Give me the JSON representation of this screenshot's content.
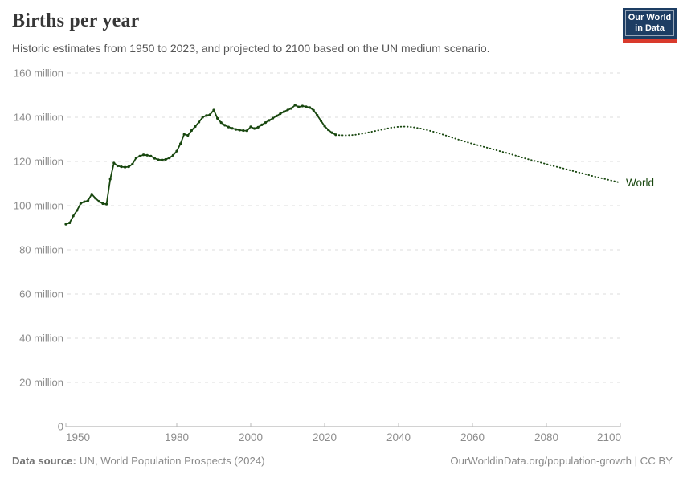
{
  "header": {
    "title": "Births per year",
    "subtitle": "Historic estimates from 1950 to 2023, and projected to 2100 based on the UN medium scenario.",
    "logo": {
      "line1": "Our World",
      "line2": "in Data"
    }
  },
  "footer": {
    "source_label": "Data source:",
    "source_text": "UN, World Population Prospects (2024)",
    "credit": "OurWorldinData.org/population-growth | CC BY"
  },
  "colors": {
    "series": "#18470f",
    "grid": "#dcdcdc",
    "axis": "#a5a5a5",
    "tick": "#b8b8b8",
    "tick_label": "#8c8c8c",
    "logo_navy": "#1d3d63",
    "logo_red": "#d93a2c"
  },
  "chart_data": {
    "type": "line",
    "title": "Births per year",
    "xlabel": "",
    "ylabel": "",
    "unit": "million",
    "xlim": [
      1950,
      2100
    ],
    "ylim": [
      0,
      160
    ],
    "grid": "horizontal-dashed",
    "legend_position": "end-of-line-label",
    "end_label": "World",
    "x_ticks": [
      1950,
      1980,
      2000,
      2020,
      2040,
      2060,
      2080,
      2100
    ],
    "y_ticks": [
      {
        "value": 0,
        "label": "0"
      },
      {
        "value": 20,
        "label": "20 million"
      },
      {
        "value": 40,
        "label": "40 million"
      },
      {
        "value": 60,
        "label": "60 million"
      },
      {
        "value": 80,
        "label": "80 million"
      },
      {
        "value": 100,
        "label": "100 million"
      },
      {
        "value": 120,
        "label": "120 million"
      },
      {
        "value": 140,
        "label": "140 million"
      },
      {
        "value": 160,
        "label": "160 million"
      }
    ],
    "series": [
      {
        "name": "World — historic estimates",
        "style": "solid",
        "markers": true,
        "color": "#18470f",
        "points": [
          [
            1950,
            91.6
          ],
          [
            1951,
            92.2
          ],
          [
            1952,
            95.3
          ],
          [
            1953,
            97.8
          ],
          [
            1954,
            101.0
          ],
          [
            1955,
            101.8
          ],
          [
            1956,
            102.3
          ],
          [
            1957,
            105.2
          ],
          [
            1958,
            103.3
          ],
          [
            1959,
            101.9
          ],
          [
            1960,
            100.9
          ],
          [
            1961,
            100.7
          ],
          [
            1962,
            112.0
          ],
          [
            1963,
            119.3
          ],
          [
            1964,
            118.0
          ],
          [
            1965,
            117.6
          ],
          [
            1966,
            117.4
          ],
          [
            1967,
            117.6
          ],
          [
            1968,
            118.8
          ],
          [
            1969,
            121.6
          ],
          [
            1970,
            122.4
          ],
          [
            1971,
            123.0
          ],
          [
            1972,
            122.8
          ],
          [
            1973,
            122.4
          ],
          [
            1974,
            121.4
          ],
          [
            1975,
            120.8
          ],
          [
            1976,
            120.7
          ],
          [
            1977,
            120.9
          ],
          [
            1978,
            121.6
          ],
          [
            1979,
            122.8
          ],
          [
            1980,
            124.7
          ],
          [
            1981,
            128.0
          ],
          [
            1982,
            132.3
          ],
          [
            1983,
            131.8
          ],
          [
            1984,
            134.0
          ],
          [
            1985,
            135.8
          ],
          [
            1986,
            137.8
          ],
          [
            1987,
            140.0
          ],
          [
            1988,
            140.8
          ],
          [
            1989,
            141.2
          ],
          [
            1990,
            143.3
          ],
          [
            1991,
            139.5
          ],
          [
            1992,
            137.6
          ],
          [
            1993,
            136.4
          ],
          [
            1994,
            135.6
          ],
          [
            1995,
            135.0
          ],
          [
            1996,
            134.5
          ],
          [
            1997,
            134.2
          ],
          [
            1998,
            134.0
          ],
          [
            1999,
            133.9
          ],
          [
            2000,
            135.7
          ],
          [
            2001,
            134.9
          ],
          [
            2002,
            135.5
          ],
          [
            2003,
            136.6
          ],
          [
            2004,
            137.6
          ],
          [
            2005,
            138.6
          ],
          [
            2006,
            139.6
          ],
          [
            2007,
            140.6
          ],
          [
            2008,
            141.6
          ],
          [
            2009,
            142.5
          ],
          [
            2010,
            143.3
          ],
          [
            2011,
            144.0
          ],
          [
            2012,
            145.5
          ],
          [
            2013,
            144.7
          ],
          [
            2014,
            145.1
          ],
          [
            2015,
            144.8
          ],
          [
            2016,
            144.4
          ],
          [
            2017,
            143.2
          ],
          [
            2018,
            140.9
          ],
          [
            2019,
            138.4
          ],
          [
            2020,
            136.0
          ],
          [
            2021,
            134.3
          ],
          [
            2022,
            133.0
          ],
          [
            2023,
            132.1
          ]
        ]
      },
      {
        "name": "World — projected (UN medium scenario)",
        "style": "dotted",
        "markers": false,
        "color": "#18470f",
        "points": [
          [
            2023,
            132.1
          ],
          [
            2024,
            131.9
          ],
          [
            2026,
            131.8
          ],
          [
            2028,
            132.0
          ],
          [
            2030,
            132.5
          ],
          [
            2032,
            133.2
          ],
          [
            2034,
            133.9
          ],
          [
            2036,
            134.6
          ],
          [
            2038,
            135.3
          ],
          [
            2040,
            135.7
          ],
          [
            2042,
            135.8
          ],
          [
            2044,
            135.5
          ],
          [
            2046,
            134.9
          ],
          [
            2048,
            134.1
          ],
          [
            2050,
            133.2
          ],
          [
            2052,
            132.2
          ],
          [
            2054,
            131.1
          ],
          [
            2056,
            130.0
          ],
          [
            2058,
            129.0
          ],
          [
            2060,
            128.0
          ],
          [
            2062,
            127.1
          ],
          [
            2064,
            126.2
          ],
          [
            2066,
            125.3
          ],
          [
            2068,
            124.4
          ],
          [
            2070,
            123.5
          ],
          [
            2072,
            122.5
          ],
          [
            2074,
            121.5
          ],
          [
            2076,
            120.6
          ],
          [
            2078,
            119.7
          ],
          [
            2080,
            118.8
          ],
          [
            2082,
            117.9
          ],
          [
            2084,
            117.1
          ],
          [
            2086,
            116.2
          ],
          [
            2088,
            115.3
          ],
          [
            2090,
            114.5
          ],
          [
            2092,
            113.6
          ],
          [
            2094,
            112.8
          ],
          [
            2096,
            112.0
          ],
          [
            2098,
            111.2
          ],
          [
            2100,
            110.4
          ]
        ]
      }
    ]
  }
}
